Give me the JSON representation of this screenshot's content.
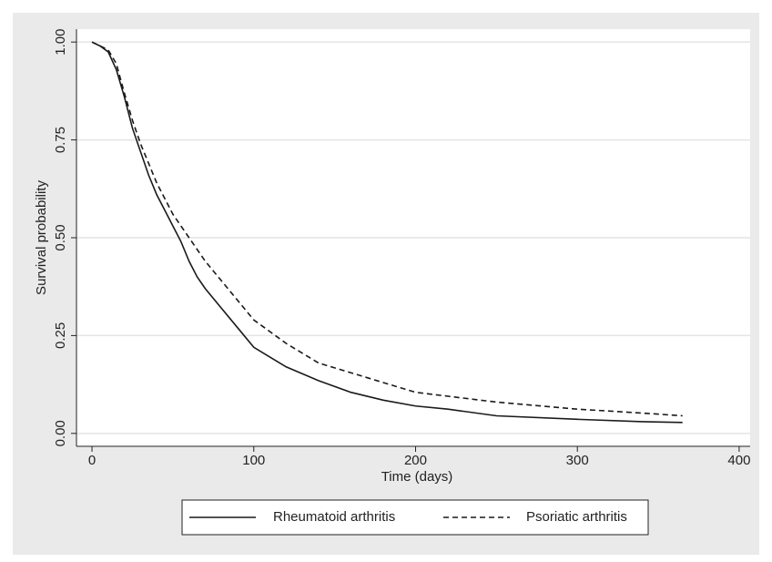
{
  "chart_data": {
    "type": "line",
    "x_label": "Time (days)",
    "y_label": "Survival probability",
    "x": [
      0,
      5,
      10,
      15,
      20,
      25,
      30,
      35,
      40,
      45,
      50,
      55,
      60,
      65,
      70,
      80,
      90,
      100,
      110,
      120,
      140,
      160,
      180,
      200,
      220,
      250,
      300,
      340,
      365
    ],
    "series": [
      {
        "name": "Rheumatoid arthritis",
        "color": "#1a1a1a",
        "style": "solid",
        "values": [
          1,
          0.99,
          0.975,
          0.93,
          0.86,
          0.78,
          0.72,
          0.66,
          0.61,
          0.57,
          0.53,
          0.49,
          0.44,
          0.4,
          0.37,
          0.32,
          0.27,
          0.22,
          0.195,
          0.17,
          0.135,
          0.105,
          0.085,
          0.07,
          0.062,
          0.045,
          0.036,
          0.03,
          0.028
        ]
      },
      {
        "name": "Psoriatic arthritis",
        "color": "#1a1a1a",
        "style": "dashed",
        "values": [
          1,
          0.99,
          0.98,
          0.945,
          0.87,
          0.8,
          0.74,
          0.69,
          0.64,
          0.6,
          0.56,
          0.53,
          0.5,
          0.47,
          0.44,
          0.39,
          0.34,
          0.29,
          0.26,
          0.23,
          0.18,
          0.155,
          0.13,
          0.105,
          0.095,
          0.08,
          0.062,
          0.052,
          0.045
        ]
      }
    ],
    "xlim": [
      -9.6,
      406.8
    ],
    "xticks": [
      0,
      100,
      200,
      300,
      400
    ],
    "ylim": [
      -0.033,
      1.033
    ],
    "yticks": [
      {
        "value": 0,
        "label": "0.00"
      },
      {
        "value": 0.25,
        "label": "0.25"
      },
      {
        "value": 0.5,
        "label": "0.50"
      },
      {
        "value": 0.75,
        "label": "0.75"
      },
      {
        "value": 1,
        "label": "1.00"
      }
    ],
    "grid": true,
    "legend": "bottom"
  }
}
